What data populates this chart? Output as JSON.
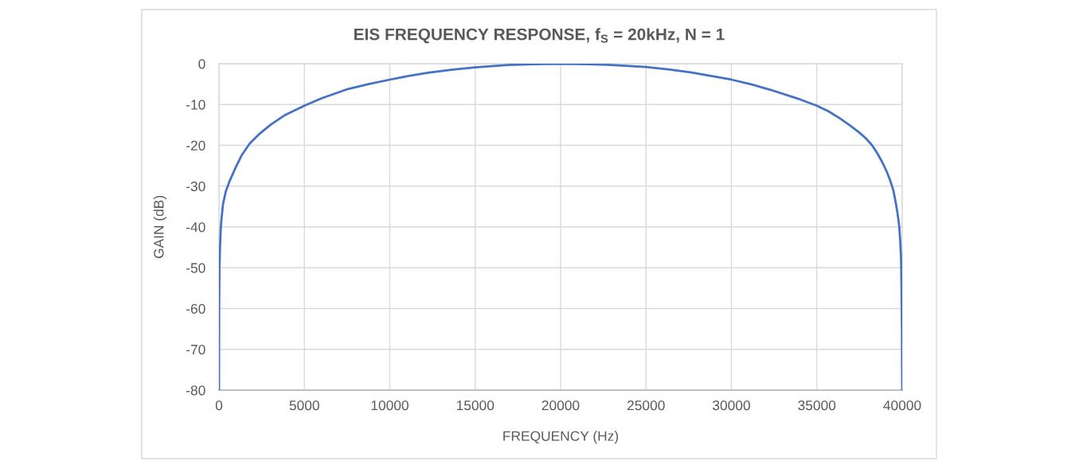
{
  "chart_data": {
    "type": "line",
    "title": "EIS FREQUENCY RESPONSE, f$_{S}$ = 20kHz, N = 1",
    "xlabel": "FREQUENCY (Hz)",
    "ylabel": "GAIN (dB)",
    "xlim": [
      0,
      40000
    ],
    "xticks": [
      0,
      5000,
      10000,
      15000,
      20000,
      25000,
      30000,
      35000,
      40000
    ],
    "ylim": [
      -80,
      0
    ],
    "yticks": [
      -80,
      -70,
      -60,
      -50,
      -40,
      -30,
      -20,
      -10,
      0
    ],
    "grid": true,
    "series": [
      {
        "color": "#4472c4",
        "line_style": "solid",
        "x": [
          0,
          10,
          30,
          60,
          110,
          160,
          234,
          390,
          620,
          935,
          1320,
          1790,
          2340,
          3040,
          3820,
          5000,
          6000,
          7550,
          8750,
          10000,
          11100,
          12230,
          13600,
          15000,
          16900,
          18500,
          20000,
          21500,
          22960,
          25000,
          26300,
          27620,
          28800,
          30000,
          31200,
          32290,
          33850,
          35000,
          35700,
          36350,
          36900,
          37440,
          37850,
          38220,
          38550,
          38840,
          39100,
          39310,
          39480,
          39620,
          39740,
          39830,
          39890,
          39935,
          39960,
          39985,
          40000
        ],
        "values": [
          -80,
          -60,
          -50,
          -45,
          -40,
          -37.5,
          -34.5,
          -31.4,
          -28.8,
          -25.8,
          -22.5,
          -19.6,
          -17.3,
          -14.9,
          -12.7,
          -10.3,
          -8.5,
          -6.2,
          -5,
          -3.9,
          -3,
          -2.2,
          -1.5,
          -0.9,
          -0.3,
          -0.1,
          0,
          -0.1,
          -0.3,
          -0.8,
          -1.4,
          -2.1,
          -3,
          -3.9,
          -5.1,
          -6.4,
          -8.5,
          -10.3,
          -11.7,
          -13.4,
          -15,
          -16.7,
          -18.2,
          -19.9,
          -22,
          -24.2,
          -26.5,
          -28.8,
          -31,
          -34,
          -37,
          -40,
          -44,
          -48,
          -55,
          -65,
          -80
        ]
      }
    ]
  }
}
